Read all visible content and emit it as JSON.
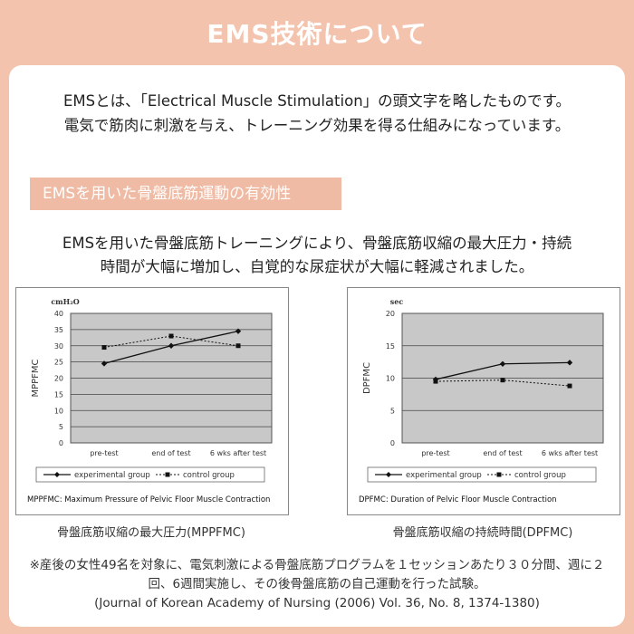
{
  "header": {
    "title": "EMS技術について"
  },
  "intro": {
    "line1": "EMSとは、「Electrical Muscle Stimulation」の頭文字を略したものです。",
    "line2": "電気で筋肉に刺激を与え、トレーニング効果を得る仕組みになっています。"
  },
  "section": {
    "label": "EMSを用いた骨盤底筋運動の有効性"
  },
  "lead": {
    "line1": "EMSを用いた骨盤底筋トレーニングにより、骨盤底筋収縮の最大圧力・持続",
    "line2": "時間が大幅に増加し、自覚的な尿症状が大幅に軽減されました。"
  },
  "chart_data": [
    {
      "type": "line",
      "unit_label": "cmH₂O",
      "ylabel": "MPPFMC",
      "xlabel": "",
      "categories": [
        "pre-test",
        "end of test",
        "6 wks after test"
      ],
      "ylim": [
        0,
        40
      ],
      "yticks": [
        0,
        5,
        10,
        15,
        20,
        25,
        30,
        35,
        40
      ],
      "series": [
        {
          "name": "experimental group",
          "style": "solid",
          "marker": "diamond",
          "values": [
            24.5,
            30,
            34.5
          ]
        },
        {
          "name": "control group",
          "style": "dotted",
          "marker": "square",
          "values": [
            29.5,
            33,
            30
          ]
        }
      ],
      "legend": "bottom",
      "footnote": "MPPFMC: Maximum Pressure of Pelvic Floor Muscle Contraction",
      "caption": "骨盤底筋収縮の最大圧力(MPPFMC)"
    },
    {
      "type": "line",
      "unit_label": "sec",
      "ylabel": "DPFMC",
      "xlabel": "",
      "categories": [
        "pre-test",
        "end of test",
        "6 wks after test"
      ],
      "ylim": [
        0,
        20
      ],
      "yticks": [
        0,
        5,
        10,
        15,
        20
      ],
      "series": [
        {
          "name": "experimental group",
          "style": "solid",
          "marker": "diamond",
          "values": [
            9.8,
            12.2,
            12.4
          ]
        },
        {
          "name": "control group",
          "style": "dotted",
          "marker": "square",
          "values": [
            9.5,
            9.7,
            8.8
          ]
        }
      ],
      "legend": "bottom",
      "footnote": "DPFMC: Duration of Pelvic Floor Muscle Contraction",
      "caption": "骨盤底筋収縮の持続時間(DPFMC)"
    }
  ],
  "note": {
    "line1": "※産後の女性49名を対象に、電気刺激による骨盤底筋プログラムを１セッションあたり３０分間、週に２",
    "line2": "回、6週間実施し、その後骨盤底筋の自己運動を行った試験。",
    "line3": "(Journal of Korean Academy of Nursing (2006) Vol. 36, No. 8, 1374-1380)"
  },
  "colors": {
    "background": "#f4c3ae",
    "label": "#efbba5",
    "plot": "#c8c8c8"
  }
}
